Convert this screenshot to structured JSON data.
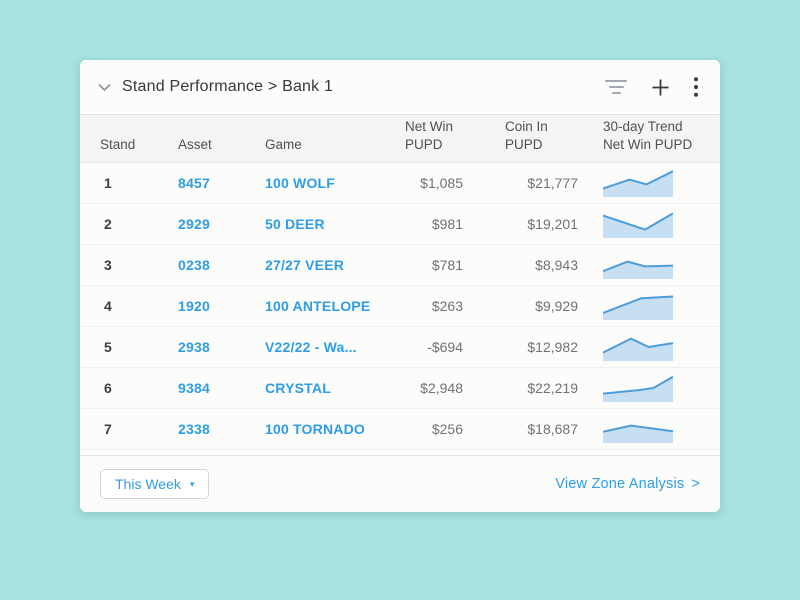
{
  "colors": {
    "background": "#a6e2de",
    "card": "#fcfcfb",
    "accent_blue": "#2f9de4",
    "text_dark": "#33383d",
    "text_muted": "#6e7378",
    "spark_stroke": "#4e9cda",
    "spark_fill": "#c6dff3"
  },
  "header": {
    "title": "Stand Performance > Bank 1"
  },
  "table": {
    "columns": [
      {
        "id": "stand",
        "lines": [
          "Stand"
        ]
      },
      {
        "id": "asset",
        "lines": [
          "Asset"
        ]
      },
      {
        "id": "game",
        "lines": [
          "Game"
        ]
      },
      {
        "id": "net_win",
        "lines": [
          "Net Win",
          "PUPD"
        ]
      },
      {
        "id": "coin_in",
        "lines": [
          "Coin In",
          "PUPD"
        ]
      },
      {
        "id": "trend",
        "lines": [
          "30-day Trend",
          "Net Win PUPD"
        ]
      }
    ],
    "rows": [
      {
        "stand": "1",
        "asset": "8457",
        "game": "100 WOLF",
        "net_win": "$1,085",
        "coin_in": "$21,777",
        "trend": [
          [
            0,
            0.3
          ],
          [
            0.38,
            0.62
          ],
          [
            0.62,
            0.45
          ],
          [
            1,
            0.92
          ]
        ]
      },
      {
        "stand": "2",
        "asset": "2929",
        "game": "50 DEER",
        "net_win": "$981",
        "coin_in": "$19,201",
        "trend": [
          [
            0,
            0.8
          ],
          [
            0.6,
            0.3
          ],
          [
            1,
            0.88
          ]
        ]
      },
      {
        "stand": "3",
        "asset": "0238",
        "game": "27/27 VEER",
        "net_win": "$781",
        "coin_in": "$8,943",
        "trend": [
          [
            0,
            0.28
          ],
          [
            0.35,
            0.62
          ],
          [
            0.6,
            0.45
          ],
          [
            1,
            0.48
          ]
        ]
      },
      {
        "stand": "4",
        "asset": "1920",
        "game": "100 ANTELOPE",
        "net_win": "$263",
        "coin_in": "$9,929",
        "trend": [
          [
            0,
            0.25
          ],
          [
            0.55,
            0.78
          ],
          [
            1,
            0.84
          ]
        ]
      },
      {
        "stand": "5",
        "asset": "2938",
        "game": "V22/22 - Wa...",
        "net_win": "-$694",
        "coin_in": "$12,982",
        "trend": [
          [
            0,
            0.3
          ],
          [
            0.4,
            0.8
          ],
          [
            0.65,
            0.5
          ],
          [
            1,
            0.64
          ]
        ]
      },
      {
        "stand": "6",
        "asset": "9384",
        "game": "CRYSTAL",
        "net_win": "$2,948",
        "coin_in": "$22,219",
        "trend": [
          [
            0,
            0.3
          ],
          [
            0.5,
            0.42
          ],
          [
            0.72,
            0.5
          ],
          [
            1,
            0.9
          ]
        ]
      },
      {
        "stand": "7",
        "asset": "2338",
        "game": "100 TORNADO",
        "net_win": "$256",
        "coin_in": "$18,687",
        "trend": [
          [
            0,
            0.4
          ],
          [
            0.4,
            0.62
          ],
          [
            1,
            0.42
          ]
        ]
      }
    ]
  },
  "footer": {
    "period_label": "This Week",
    "period_caret": "▾",
    "link_label": "View Zone Analysis",
    "link_arrow": ">"
  }
}
